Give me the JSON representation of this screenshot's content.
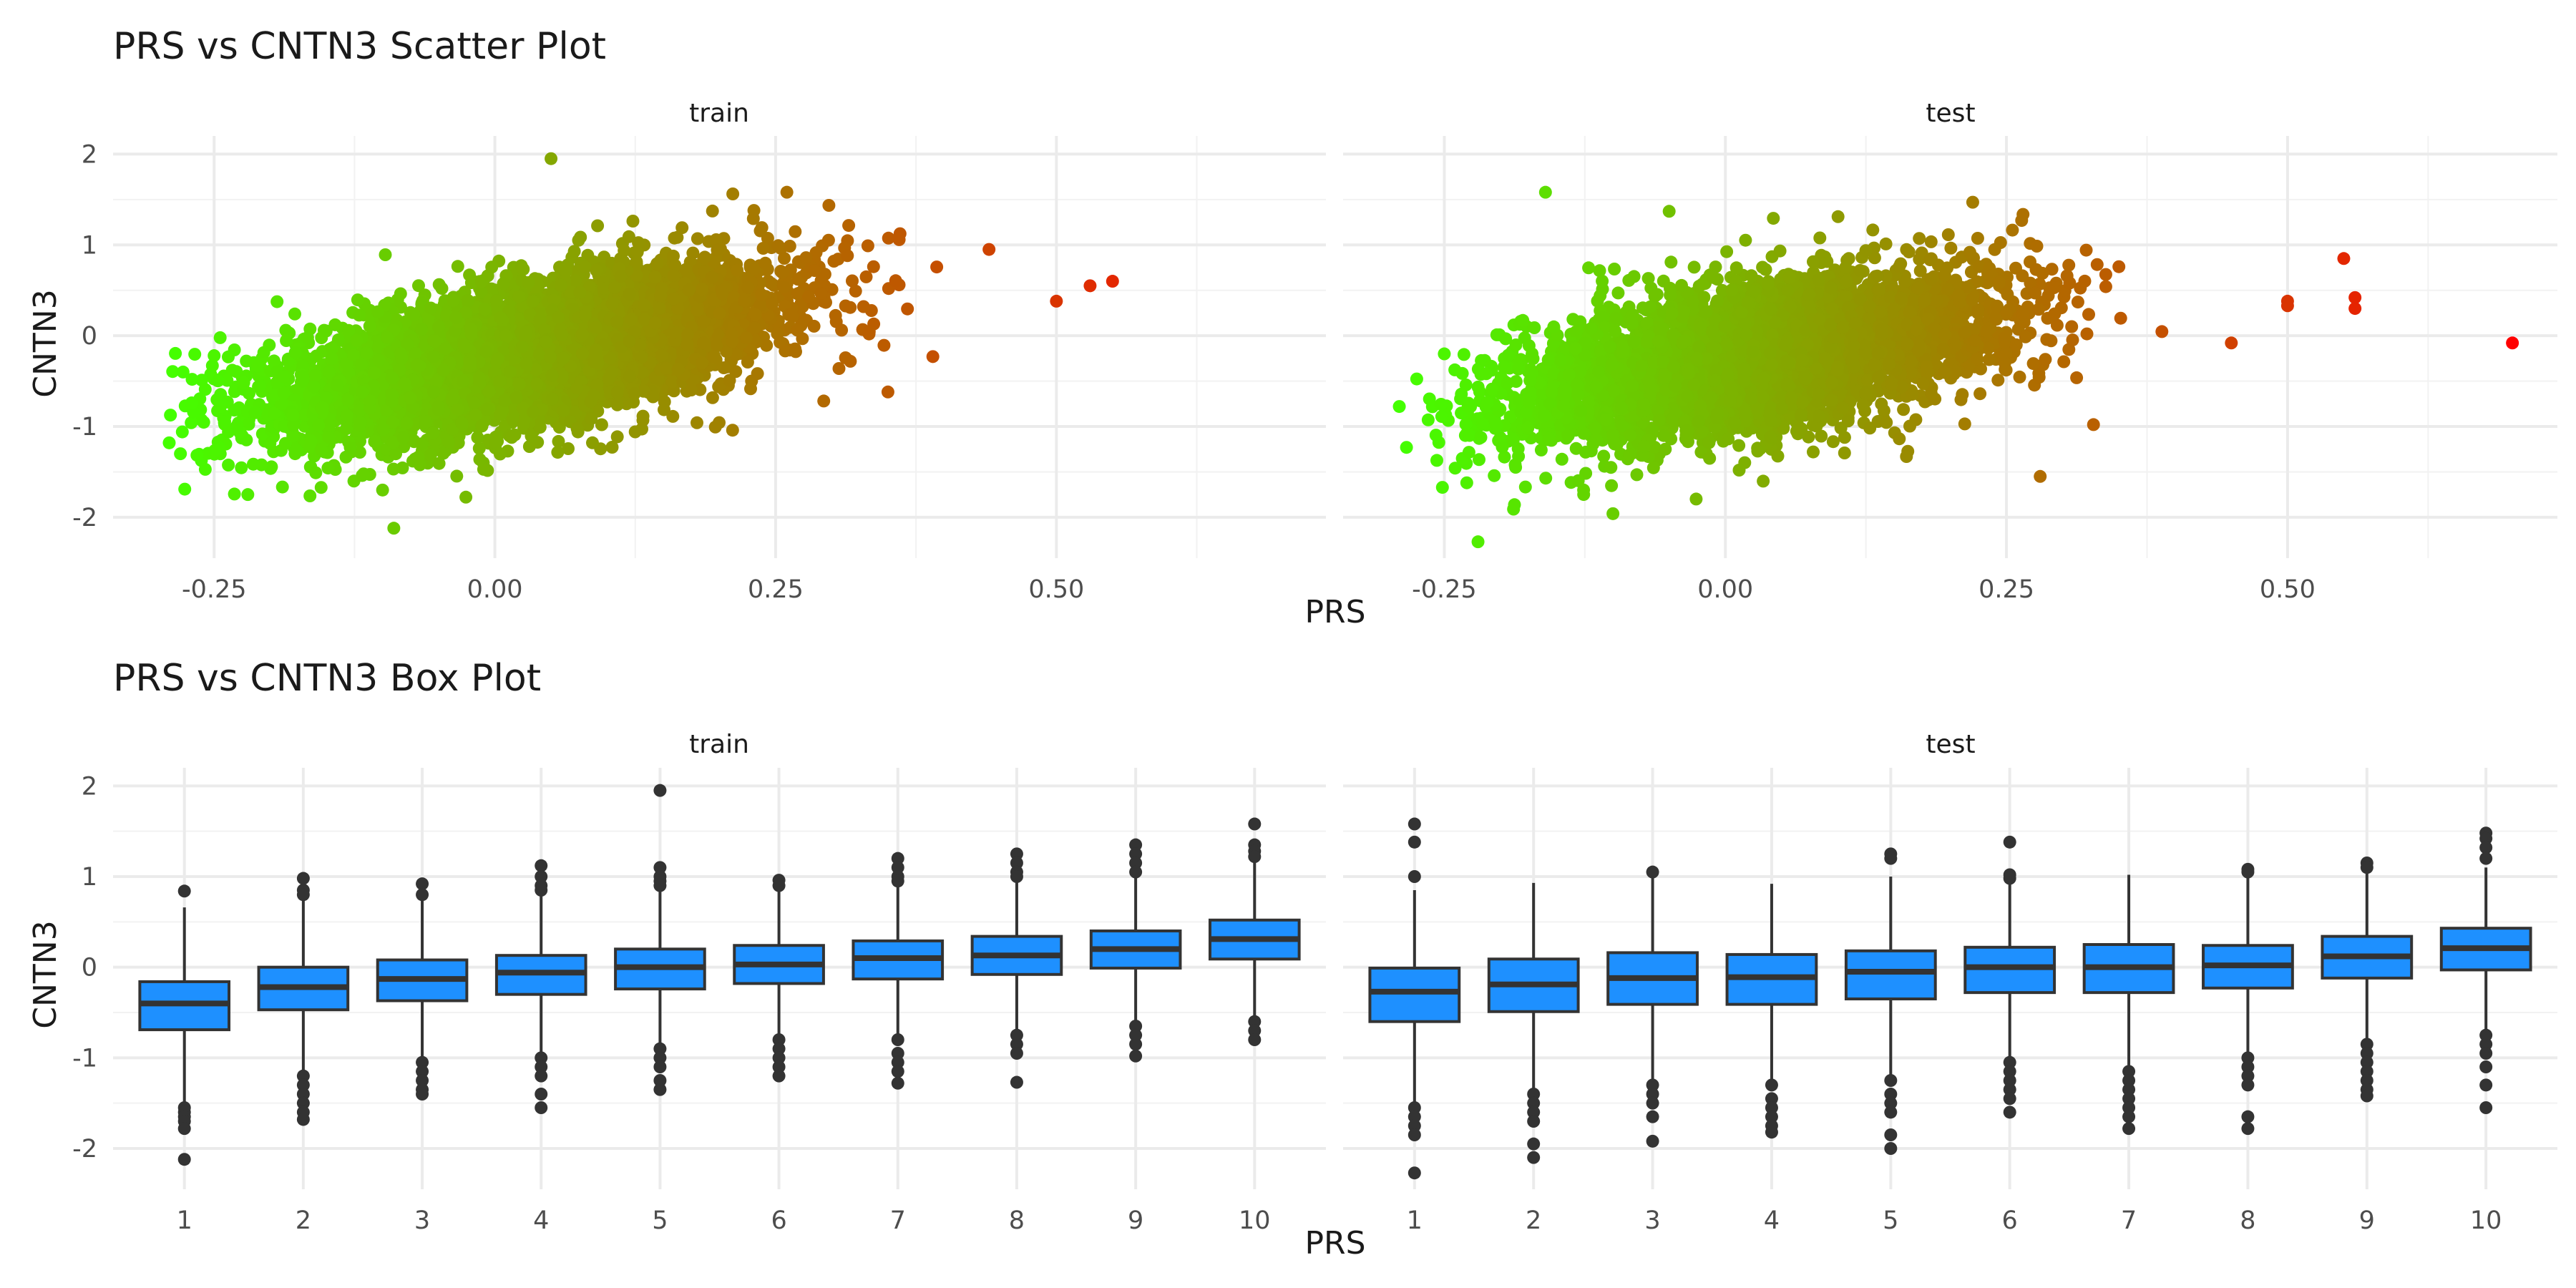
{
  "chart_data": [
    {
      "type": "scatter",
      "title": "PRS vs CNTN3 Scatter Plot",
      "xlabel": "PRS",
      "ylabel": "CNTN3",
      "facets": [
        "train",
        "test"
      ],
      "xlim": [
        -0.34,
        0.74
      ],
      "ylim": [
        -2.45,
        2.2
      ],
      "xticks": [
        -0.25,
        0.0,
        0.25,
        0.5
      ],
      "xtick_labels": [
        "-0.25",
        "0.00",
        "0.25",
        "0.50"
      ],
      "yticks": [
        -2,
        -1,
        0,
        1,
        2
      ],
      "ytick_labels": [
        "-2",
        "-1",
        "0",
        "1",
        "2"
      ],
      "grid": true,
      "color_gradient": {
        "low": "#44ff00",
        "high": "#ff0000",
        "mapped_to": "PRS"
      },
      "point_clouds": {
        "train": {
          "x_range": [
            -0.29,
            0.56
          ],
          "slope": 2.4,
          "intercept": -0.25,
          "spread": 0.38
        },
        "test": {
          "x_range": [
            -0.29,
            0.58
          ],
          "slope": 2.0,
          "intercept": -0.3,
          "spread": 0.4
        }
      },
      "series": [
        {
          "facet": "train",
          "points": [
            [
              0.05,
              1.95
            ],
            [
              -0.09,
              -2.12
            ],
            [
              -0.29,
              -1.18
            ],
            [
              -0.28,
              -1.3
            ],
            [
              -0.22,
              -1.75
            ],
            [
              0.26,
              1.58
            ],
            [
              0.55,
              0.6
            ],
            [
              0.53,
              0.55
            ],
            [
              0.5,
              0.38
            ],
            [
              0.44,
              0.95
            ],
            [
              0.35,
              -0.62
            ],
            [
              0.39,
              -0.23
            ],
            [
              -0.27,
              -0.74
            ],
            [
              -0.25,
              -0.22
            ],
            [
              -0.1,
              -1.7
            ]
          ]
        },
        {
          "facet": "test",
          "points": [
            [
              0.7,
              -0.08
            ],
            [
              -0.29,
              -0.78
            ],
            [
              -0.25,
              -0.2
            ],
            [
              -0.22,
              -2.27
            ],
            [
              -0.23,
              -1.62
            ],
            [
              -0.16,
              1.58
            ],
            [
              -0.05,
              1.37
            ],
            [
              0.22,
              1.47
            ],
            [
              0.55,
              0.85
            ],
            [
              0.56,
              0.42
            ],
            [
              0.56,
              0.3
            ],
            [
              0.5,
              0.38
            ],
            [
              0.5,
              0.33
            ],
            [
              0.45,
              -0.08
            ],
            [
              0.35,
              0.76
            ],
            [
              0.28,
              -1.55
            ],
            [
              -0.1,
              -1.96
            ]
          ]
        }
      ]
    },
    {
      "type": "box",
      "title": "PRS vs CNTN3 Box Plot",
      "xlabel": "PRS",
      "ylabel": "CNTN3",
      "facets": [
        "train",
        "test"
      ],
      "categories": [
        "1",
        "2",
        "3",
        "4",
        "5",
        "6",
        "7",
        "8",
        "9",
        "10"
      ],
      "ylim": [
        -2.45,
        2.2
      ],
      "yticks": [
        -2,
        -1,
        0,
        1,
        2
      ],
      "ytick_labels": [
        "-2",
        "-1",
        "0",
        "1",
        "2"
      ],
      "grid": true,
      "fill": "#1e90ff",
      "series": [
        {
          "facet": "train",
          "boxes": [
            {
              "q1": -0.69,
              "median": -0.4,
              "q3": -0.16,
              "lower": -1.5,
              "upper": 0.66,
              "outliers": [
                0.84,
                -1.55,
                -1.6,
                -1.65,
                -1.7,
                -1.78,
                -2.12
              ]
            },
            {
              "q1": -0.47,
              "median": -0.22,
              "q3": 0.0,
              "lower": -1.15,
              "upper": 0.75,
              "outliers": [
                0.98,
                0.85,
                0.8,
                -1.2,
                -1.3,
                -1.4,
                -1.5,
                -1.6,
                -1.68
              ]
            },
            {
              "q1": -0.37,
              "median": -0.13,
              "q3": 0.08,
              "lower": -1.0,
              "upper": 0.75,
              "outliers": [
                0.92,
                0.8,
                -1.05,
                -1.15,
                -1.25,
                -1.35,
                -1.4
              ]
            },
            {
              "q1": -0.3,
              "median": -0.06,
              "q3": 0.13,
              "lower": -0.95,
              "upper": 0.8,
              "outliers": [
                1.12,
                1.0,
                0.9,
                0.85,
                -1.0,
                -1.1,
                -1.2,
                -1.4,
                -1.55
              ]
            },
            {
              "q1": -0.24,
              "median": 0.0,
              "q3": 0.2,
              "lower": -0.88,
              "upper": 0.85,
              "outliers": [
                1.95,
                1.1,
                1.0,
                0.95,
                0.9,
                -0.9,
                -1.0,
                -1.1,
                -1.25,
                -1.35
              ]
            },
            {
              "q1": -0.18,
              "median": 0.03,
              "q3": 0.24,
              "lower": -0.78,
              "upper": 0.87,
              "outliers": [
                0.96,
                0.9,
                -0.8,
                -0.9,
                -1.0,
                -1.1,
                -1.2
              ]
            },
            {
              "q1": -0.13,
              "median": 0.1,
              "q3": 0.29,
              "lower": -0.75,
              "upper": 0.9,
              "outliers": [
                1.2,
                1.1,
                1.0,
                0.95,
                -0.8,
                -0.95,
                -1.05,
                -1.15,
                -1.28
              ]
            },
            {
              "q1": -0.08,
              "median": 0.13,
              "q3": 0.34,
              "lower": -0.7,
              "upper": 0.95,
              "outliers": [
                1.25,
                1.15,
                1.05,
                1.0,
                -0.75,
                -0.85,
                -0.95,
                -1.27
              ]
            },
            {
              "q1": -0.01,
              "median": 0.2,
              "q3": 0.4,
              "lower": -0.6,
              "upper": 1.0,
              "outliers": [
                1.35,
                1.25,
                1.15,
                1.05,
                -0.65,
                -0.75,
                -0.85,
                -0.98
              ]
            },
            {
              "q1": 0.09,
              "median": 0.31,
              "q3": 0.52,
              "lower": -0.55,
              "upper": 1.15,
              "outliers": [
                1.58,
                1.35,
                1.28,
                1.22,
                -0.6,
                -0.7,
                -0.8
              ]
            }
          ]
        },
        {
          "facet": "test",
          "boxes": [
            {
              "q1": -0.6,
              "median": -0.27,
              "q3": -0.01,
              "lower": -1.5,
              "upper": 0.85,
              "outliers": [
                1.58,
                1.38,
                1.0,
                -1.55,
                -1.65,
                -1.75,
                -1.85,
                -2.27
              ]
            },
            {
              "q1": -0.49,
              "median": -0.19,
              "q3": 0.09,
              "lower": -1.35,
              "upper": 0.93,
              "outliers": [
                -1.4,
                -1.5,
                -1.6,
                -1.7,
                -1.95,
                -2.1
              ]
            },
            {
              "q1": -0.41,
              "median": -0.12,
              "q3": 0.16,
              "lower": -1.25,
              "upper": 0.98,
              "outliers": [
                1.05,
                -1.3,
                -1.4,
                -1.5,
                -1.65,
                -1.92
              ]
            },
            {
              "q1": -0.41,
              "median": -0.11,
              "q3": 0.14,
              "lower": -1.25,
              "upper": 0.92,
              "outliers": [
                -1.3,
                -1.45,
                -1.55,
                -1.65,
                -1.75,
                -1.82
              ]
            },
            {
              "q1": -0.35,
              "median": -0.05,
              "q3": 0.18,
              "lower": -1.2,
              "upper": 1.0,
              "outliers": [
                1.25,
                1.2,
                -1.25,
                -1.4,
                -1.5,
                -1.6,
                -1.85,
                -2.0
              ]
            },
            {
              "q1": -0.28,
              "median": 0.0,
              "q3": 0.22,
              "lower": -1.0,
              "upper": 0.95,
              "outliers": [
                1.38,
                1.02,
                0.98,
                -1.05,
                -1.15,
                -1.25,
                -1.35,
                -1.45,
                -1.6
              ]
            },
            {
              "q1": -0.28,
              "median": 0.0,
              "q3": 0.25,
              "lower": -1.1,
              "upper": 1.02,
              "outliers": [
                -1.15,
                -1.25,
                -1.35,
                -1.45,
                -1.55,
                -1.65,
                -1.78
              ]
            },
            {
              "q1": -0.23,
              "median": 0.02,
              "q3": 0.24,
              "lower": -0.95,
              "upper": 1.0,
              "outliers": [
                1.08,
                1.05,
                -1.0,
                -1.1,
                -1.2,
                -1.3,
                -1.65,
                -1.78
              ]
            },
            {
              "q1": -0.12,
              "median": 0.12,
              "q3": 0.34,
              "lower": -0.8,
              "upper": 1.05,
              "outliers": [
                1.15,
                1.1,
                -0.85,
                -0.95,
                -1.05,
                -1.15,
                -1.25,
                -1.35,
                -1.42
              ]
            },
            {
              "q1": -0.03,
              "median": 0.21,
              "q3": 0.43,
              "lower": -0.7,
              "upper": 1.1,
              "outliers": [
                1.48,
                1.42,
                1.32,
                1.2,
                -0.75,
                -0.85,
                -0.95,
                -1.1,
                -1.3,
                -1.55
              ]
            }
          ]
        }
      ]
    }
  ]
}
